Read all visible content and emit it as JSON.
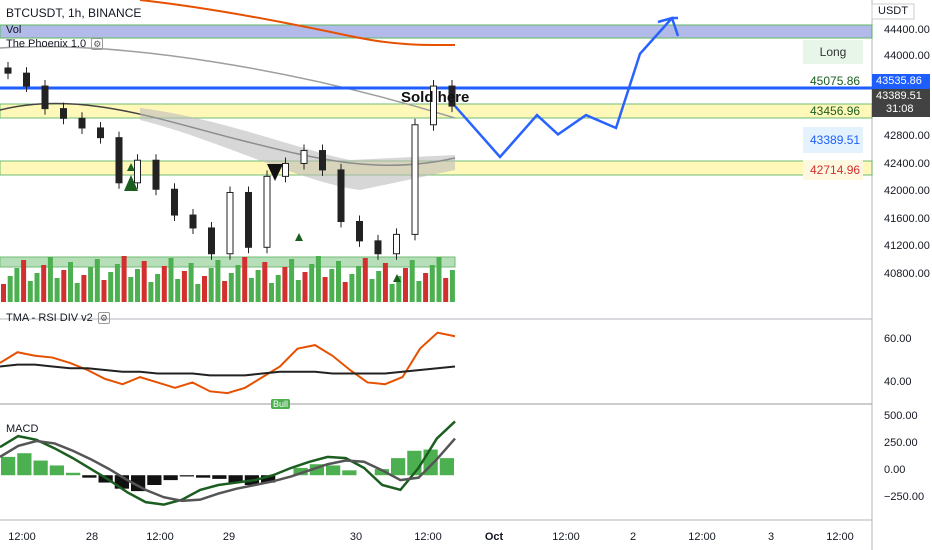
{
  "header": {
    "symbol_title": "BTCUSDT, 1h, BINANCE",
    "vol_label": "Vol",
    "indicator_label": "The Phoenix 1.0",
    "currency": "USDT"
  },
  "annotation": {
    "sold_here": "Sold here"
  },
  "colors": {
    "bull": "#4caf50",
    "bear": "#d32f2f",
    "zone": "#ffff99",
    "blue_line": "#1e5eff",
    "projection": "#2962ff"
  },
  "right_labels": {
    "long": "Long",
    "level_1": "45075.86",
    "level_2": "43456.96",
    "level_3": "43389.51",
    "level_4": "42714.96"
  },
  "price_tags": {
    "high": "43535.86",
    "current": "43389.51",
    "countdown": "31:08"
  },
  "price_axis": [
    "44400.00",
    "44000.00",
    "43600.00",
    "42800.00",
    "42400.00",
    "42000.00",
    "41600.00",
    "41200.00",
    "40800.00"
  ],
  "rsi_panel": {
    "title": "TMA - RSI DIV v2",
    "axis": [
      "60.00",
      "40.00"
    ],
    "bull_label": "Bull"
  },
  "macd_panel": {
    "title": "MACD",
    "axis": [
      "500.00",
      "250.00",
      "0.00",
      "−250.00"
    ]
  },
  "date_axis": [
    "12:00",
    "28",
    "12:00",
    "29",
    "30",
    "12:00",
    "Oct",
    "12:00",
    "2",
    "12:00",
    "3",
    "12:00"
  ],
  "chart_data": [
    {
      "type": "candlestick",
      "title": "BTCUSDT, 1h, BINANCE",
      "x": [
        "27 12:00",
        "28",
        "28 12:00",
        "29",
        "30",
        "30 12:00"
      ],
      "ylim": [
        40600,
        44600
      ],
      "zones": [
        {
          "name": "",
          "low": 43456.96,
          "high": 43535.86
        },
        {
          "name": "",
          "low": 42650,
          "high": 42714.96
        },
        {
          "name": "",
          "low": 40880,
          "high": 40960
        }
      ],
      "horizontal_lines": [
        43456.96,
        43389.51
      ],
      "approx_close_path": [
        43900,
        43700,
        43350,
        43200,
        43050,
        42900,
        42200,
        42550,
        42100,
        41700,
        41500,
        41100,
        42050,
        41200,
        42300,
        42500,
        42700,
        42400,
        41600,
        41300,
        41100,
        41400,
        43100,
        43700,
        43389.51
      ],
      "projection_path": [
        43389.51,
        42600,
        43250,
        42950,
        43250,
        43050,
        44200,
        45100,
        45075.86
      ]
    },
    {
      "type": "line",
      "title": "TMA - RSI DIV v2",
      "ylim": [
        30,
        75
      ],
      "series": [
        {
          "name": "",
          "values": [
            52,
            58,
            56,
            55,
            52,
            48,
            43,
            40,
            44,
            41,
            38,
            41,
            36,
            35,
            38,
            44,
            50,
            60,
            62,
            56,
            48,
            41,
            40,
            44,
            60,
            69,
            67
          ]
        },
        {
          "name": "",
          "values": [
            50,
            51,
            51,
            50,
            49,
            49,
            48,
            47,
            47,
            46,
            46,
            46,
            45,
            45,
            45,
            46,
            47,
            47,
            47,
            46,
            46,
            46,
            46,
            47,
            48,
            49,
            50
          ]
        }
      ]
    },
    {
      "type": "bar",
      "title": "MACD",
      "ylim": [
        -350,
        550
      ],
      "histogram": [
        150,
        180,
        120,
        80,
        20,
        -20,
        -60,
        -110,
        -130,
        -80,
        -40,
        -10,
        -20,
        -30,
        -60,
        -80,
        -60,
        0,
        60,
        90,
        80,
        40,
        0,
        50,
        140,
        200,
        210,
        140
      ],
      "series": [
        {
          "name": "",
          "values": [
            230,
            320,
            290,
            220,
            140,
            50,
            -40,
            -140,
            -220,
            -240,
            -200,
            -120,
            -80,
            -60,
            -40,
            0,
            60,
            110,
            150,
            140,
            60,
            -80,
            -120,
            60,
            300,
            440
          ]
        },
        {
          "name": "",
          "values": [
            150,
            240,
            280,
            260,
            200,
            130,
            50,
            -40,
            -120,
            -180,
            -210,
            -200,
            -150,
            -110,
            -80,
            -50,
            -10,
            40,
            90,
            120,
            110,
            40,
            -40,
            -20,
            130,
            300
          ]
        }
      ]
    }
  ]
}
